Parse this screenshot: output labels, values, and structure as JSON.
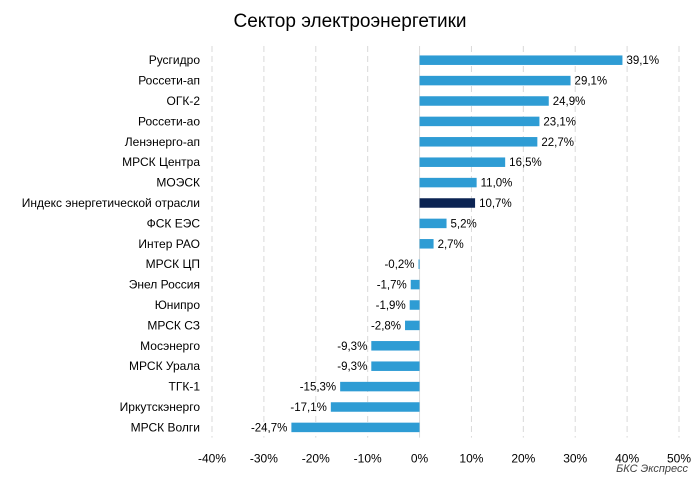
{
  "chart_data": {
    "type": "bar",
    "orientation": "horizontal",
    "title": "Сектор электроэнергетики",
    "source": "БКС Экспресс",
    "xlim": [
      -40,
      50
    ],
    "xticks": [
      -40,
      -30,
      -20,
      -10,
      0,
      10,
      20,
      30,
      40,
      50
    ],
    "xtick_labels": [
      "-40%",
      "-30%",
      "-20%",
      "-10%",
      "0%",
      "10%",
      "20%",
      "30%",
      "40%",
      "50%"
    ],
    "grid": "vertical, dashed",
    "colors": {
      "bar": "#2E9CD4",
      "highlight": "#0B2453",
      "grid": "#D9D9D9"
    },
    "categories": [
      "Русгидро",
      "Россети-ап",
      "ОГК-2",
      "Россети-ао",
      "Ленэнерго-ап",
      "МРСК Центра",
      "МОЭСК",
      "Индекс энергетической отрасли",
      "ФСК ЕЭС",
      "Интер РАО",
      "МРСК ЦП",
      "Энел Россия",
      "Юнипро",
      "МРСК СЗ",
      "Мосэнерго",
      "МРСК Урала",
      "ТГК-1",
      "Иркутскэнерго",
      "МРСК Волги"
    ],
    "values": [
      39.1,
      29.1,
      24.9,
      23.1,
      22.7,
      16.5,
      11.0,
      10.7,
      5.2,
      2.7,
      -0.2,
      -1.7,
      -1.9,
      -2.8,
      -9.3,
      -9.3,
      -15.3,
      -17.1,
      -24.7
    ],
    "data_labels": [
      "39,1%",
      "29,1%",
      "24,9%",
      "23,1%",
      "22,7%",
      "16,5%",
      "11,0%",
      "10,7%",
      "5,2%",
      "2,7%",
      "-0,2%",
      "-1,7%",
      "-1,9%",
      "-2,8%",
      "-9,3%",
      "-9,3%",
      "-15,3%",
      "-17,1%",
      "-24,7%"
    ],
    "highlighted_category": "Индекс энергетической отрасли"
  }
}
